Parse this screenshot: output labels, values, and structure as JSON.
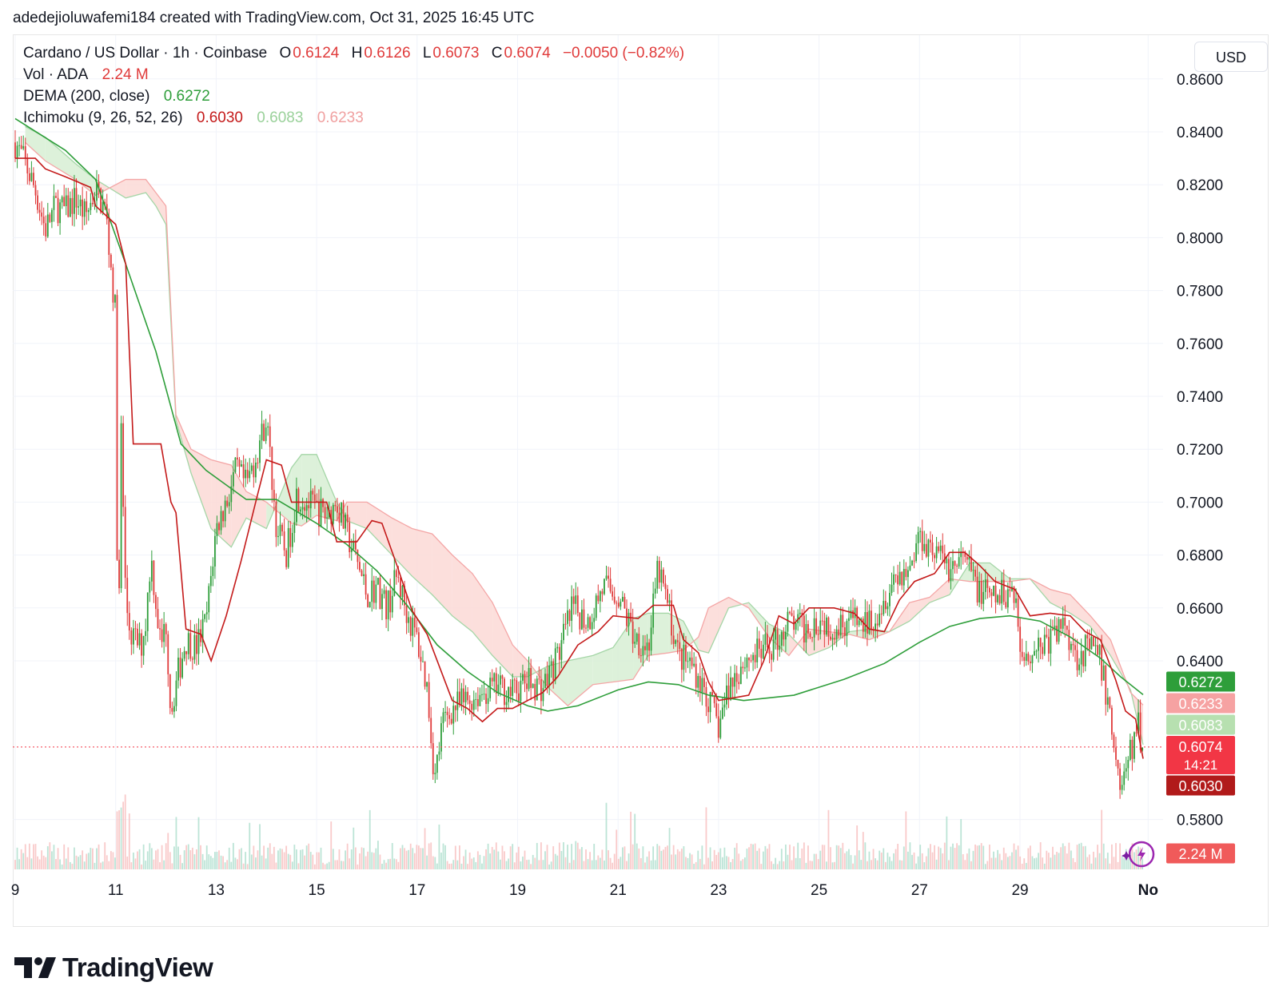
{
  "header": {
    "text": "adedejioluwafemi184 created with TradingView.com, Oct 31, 2025 16:45 UTC"
  },
  "legend": {
    "symbol": "Cardano / US Dollar · 1h · Coinbase",
    "o_label": "O",
    "o_value": "0.6124",
    "h_label": "H",
    "h_value": "0.6126",
    "l_label": "L",
    "l_value": "0.6073",
    "c_label": "C",
    "c_value": "0.6074",
    "change": "−0.0050 (−0.82%)",
    "vol_label": "Vol · ADA",
    "vol_value": "2.24 M",
    "dema_label": "DEMA (200, close)",
    "dema_value": "0.6272",
    "ichimoku_label": "Ichimoku (9, 26, 52, 26)",
    "ichimoku_values": [
      "0.6030",
      "0.6083",
      "0.6233"
    ]
  },
  "currency_button": "USD",
  "logo": {
    "text": "TradingView",
    "icon": "tradingview-logo-icon"
  },
  "lightning_icon": "lightning-bolt-icon",
  "colors": {
    "up": "#26a69a",
    "candle_up": "#2e9e3a",
    "candle_down": "#e03b3b",
    "dema": "#2e9e3a",
    "conversion": "#c41a1a",
    "cloud_green": "#d7efd4",
    "cloud_red": "#fbd9d6",
    "last_price": "#f23645"
  },
  "chart_data": {
    "type": "candlestick",
    "title": "Cardano / US Dollar · 1h · Coinbase",
    "ylim": [
      0.5714,
      0.8657
    ],
    "y_ticks": [
      "0.8600",
      "0.8400",
      "0.8200",
      "0.8000",
      "0.7800",
      "0.7600",
      "0.7400",
      "0.7200",
      "0.7000",
      "0.6800",
      "0.6600",
      "0.6400",
      "0.5800"
    ],
    "x_ticks": [
      "9",
      "11",
      "13",
      "15",
      "17",
      "19",
      "21",
      "23",
      "25",
      "27",
      "29",
      "No"
    ],
    "x_tick_days": [
      9,
      11,
      13,
      15,
      17,
      19,
      21,
      23,
      25,
      27,
      29,
      31.55
    ],
    "x_range_days": [
      9,
      31.45
    ],
    "dema": [
      [
        9.0,
        0.845
      ],
      [
        10.0,
        0.833
      ],
      [
        10.6,
        0.822
      ],
      [
        11.2,
        0.79
      ],
      [
        11.8,
        0.757
      ],
      [
        12.3,
        0.722
      ],
      [
        12.8,
        0.712
      ],
      [
        13.6,
        0.701
      ],
      [
        14.2,
        0.701
      ],
      [
        15.0,
        0.692
      ],
      [
        15.6,
        0.684
      ],
      [
        16.2,
        0.674
      ],
      [
        16.8,
        0.661
      ],
      [
        17.4,
        0.646
      ],
      [
        18.0,
        0.636
      ],
      [
        18.6,
        0.628
      ],
      [
        19.2,
        0.623
      ],
      [
        19.6,
        0.621
      ],
      [
        20.2,
        0.623
      ],
      [
        21.0,
        0.629
      ],
      [
        21.6,
        0.632
      ],
      [
        22.2,
        0.631
      ],
      [
        22.8,
        0.627
      ],
      [
        23.5,
        0.625
      ],
      [
        24.5,
        0.627
      ],
      [
        25.5,
        0.633
      ],
      [
        26.3,
        0.639
      ],
      [
        27.0,
        0.647
      ],
      [
        27.6,
        0.653
      ],
      [
        28.2,
        0.656
      ],
      [
        28.8,
        0.657
      ],
      [
        29.4,
        0.655
      ],
      [
        30.0,
        0.649
      ],
      [
        30.6,
        0.641
      ],
      [
        31.0,
        0.634
      ],
      [
        31.45,
        0.6272
      ]
    ],
    "conversion": [
      [
        9.0,
        0.83
      ],
      [
        9.4,
        0.83
      ],
      [
        9.6,
        0.826
      ],
      [
        10.0,
        0.823
      ],
      [
        10.5,
        0.819
      ],
      [
        10.6,
        0.812
      ],
      [
        11.0,
        0.805
      ],
      [
        11.2,
        0.79
      ],
      [
        11.35,
        0.722
      ],
      [
        11.9,
        0.722
      ],
      [
        12.1,
        0.7
      ],
      [
        12.2,
        0.696
      ],
      [
        12.4,
        0.652
      ],
      [
        12.7,
        0.65
      ],
      [
        12.9,
        0.64
      ],
      [
        13.2,
        0.657
      ],
      [
        13.5,
        0.678
      ],
      [
        13.8,
        0.701
      ],
      [
        14.0,
        0.716
      ],
      [
        14.3,
        0.714
      ],
      [
        14.5,
        0.7
      ],
      [
        15.2,
        0.7
      ],
      [
        15.4,
        0.685
      ],
      [
        15.8,
        0.685
      ],
      [
        16.1,
        0.693
      ],
      [
        16.3,
        0.692
      ],
      [
        16.6,
        0.676
      ],
      [
        16.9,
        0.659
      ],
      [
        17.2,
        0.65
      ],
      [
        17.5,
        0.635
      ],
      [
        17.7,
        0.625
      ],
      [
        18.0,
        0.622
      ],
      [
        18.3,
        0.617
      ],
      [
        18.6,
        0.622
      ],
      [
        18.9,
        0.622
      ],
      [
        19.2,
        0.625
      ],
      [
        19.5,
        0.628
      ],
      [
        19.8,
        0.634
      ],
      [
        20.2,
        0.646
      ],
      [
        20.6,
        0.651
      ],
      [
        20.9,
        0.657
      ],
      [
        21.4,
        0.656
      ],
      [
        21.7,
        0.661
      ],
      [
        22.1,
        0.661
      ],
      [
        22.3,
        0.648
      ],
      [
        22.6,
        0.643
      ],
      [
        22.8,
        0.632
      ],
      [
        23.0,
        0.625
      ],
      [
        23.3,
        0.626
      ],
      [
        23.6,
        0.627
      ],
      [
        23.9,
        0.64
      ],
      [
        24.2,
        0.657
      ],
      [
        24.5,
        0.654
      ],
      [
        24.8,
        0.66
      ],
      [
        25.3,
        0.66
      ],
      [
        25.7,
        0.658
      ],
      [
        26.0,
        0.652
      ],
      [
        26.3,
        0.651
      ],
      [
        26.6,
        0.663
      ],
      [
        26.9,
        0.67
      ],
      [
        27.3,
        0.673
      ],
      [
        27.6,
        0.681
      ],
      [
        27.9,
        0.681
      ],
      [
        28.2,
        0.676
      ],
      [
        28.5,
        0.67
      ],
      [
        28.9,
        0.667
      ],
      [
        29.2,
        0.657
      ],
      [
        29.6,
        0.658
      ],
      [
        30.0,
        0.657
      ],
      [
        30.3,
        0.651
      ],
      [
        30.6,
        0.648
      ],
      [
        30.9,
        0.633
      ],
      [
        31.1,
        0.621
      ],
      [
        31.3,
        0.618
      ],
      [
        31.45,
        0.603
      ]
    ],
    "ichimoku_cloud": [
      [
        9.2,
        0.842,
        0.836
      ],
      [
        9.6,
        0.838,
        0.829
      ],
      [
        10.2,
        0.828,
        0.822
      ],
      [
        10.6,
        0.822,
        0.816
      ],
      [
        11.2,
        0.815,
        0.822
      ],
      [
        11.6,
        0.817,
        0.822
      ],
      [
        11.8,
        0.812,
        0.817
      ],
      [
        12.0,
        0.805,
        0.812
      ],
      [
        12.2,
        0.731,
        0.733
      ],
      [
        12.5,
        0.711,
        0.72
      ],
      [
        12.9,
        0.69,
        0.716
      ],
      [
        13.3,
        0.683,
        0.714
      ],
      [
        13.6,
        0.694,
        0.704
      ],
      [
        14.0,
        0.69,
        0.7
      ],
      [
        14.5,
        0.713,
        0.692
      ],
      [
        14.7,
        0.718,
        0.691
      ],
      [
        15.0,
        0.718,
        0.695
      ],
      [
        15.4,
        0.7,
        0.693
      ],
      [
        15.6,
        0.693,
        0.7
      ],
      [
        16.0,
        0.69,
        0.7
      ],
      [
        16.5,
        0.68,
        0.694
      ],
      [
        16.9,
        0.672,
        0.69
      ],
      [
        17.3,
        0.665,
        0.688
      ],
      [
        17.7,
        0.657,
        0.68
      ],
      [
        18.1,
        0.651,
        0.673
      ],
      [
        18.5,
        0.642,
        0.662
      ],
      [
        18.9,
        0.634,
        0.646
      ],
      [
        19.2,
        0.634,
        0.64
      ],
      [
        19.6,
        0.638,
        0.63
      ],
      [
        20.0,
        0.64,
        0.623
      ],
      [
        20.5,
        0.642,
        0.631
      ],
      [
        20.9,
        0.645,
        0.632
      ],
      [
        21.3,
        0.656,
        0.633
      ],
      [
        21.6,
        0.658,
        0.642
      ],
      [
        22.0,
        0.658,
        0.643
      ],
      [
        22.3,
        0.655,
        0.644
      ],
      [
        22.6,
        0.644,
        0.649
      ],
      [
        22.8,
        0.643,
        0.66
      ],
      [
        23.2,
        0.66,
        0.664
      ],
      [
        23.6,
        0.662,
        0.66
      ],
      [
        24.0,
        0.654,
        0.649
      ],
      [
        24.4,
        0.65,
        0.642
      ],
      [
        24.8,
        0.642,
        0.652
      ],
      [
        25.2,
        0.645,
        0.651
      ],
      [
        25.6,
        0.651,
        0.65
      ],
      [
        26.0,
        0.652,
        0.648
      ],
      [
        26.4,
        0.651,
        0.651
      ],
      [
        26.8,
        0.655,
        0.662
      ],
      [
        27.2,
        0.662,
        0.664
      ],
      [
        27.6,
        0.665,
        0.671
      ],
      [
        28.0,
        0.677,
        0.67
      ],
      [
        28.4,
        0.677,
        0.67
      ],
      [
        28.8,
        0.671,
        0.67
      ],
      [
        29.2,
        0.671,
        0.671
      ],
      [
        29.6,
        0.662,
        0.667
      ],
      [
        30.0,
        0.658,
        0.665
      ],
      [
        30.4,
        0.653,
        0.657
      ],
      [
        30.8,
        0.642,
        0.648
      ],
      [
        31.2,
        0.629,
        0.628
      ],
      [
        31.45,
        0.6083,
        0.6233
      ]
    ],
    "price_path": [
      [
        9.0,
        0.836
      ],
      [
        9.2,
        0.828
      ],
      [
        9.4,
        0.818
      ],
      [
        9.6,
        0.803
      ],
      [
        9.8,
        0.812
      ],
      [
        10.0,
        0.81
      ],
      [
        10.2,
        0.815
      ],
      [
        10.4,
        0.808
      ],
      [
        10.6,
        0.818
      ],
      [
        10.8,
        0.81
      ],
      [
        10.9,
        0.79
      ],
      [
        11.0,
        0.77
      ],
      [
        11.05,
        0.62
      ],
      [
        11.1,
        0.735
      ],
      [
        11.2,
        0.662
      ],
      [
        11.3,
        0.65
      ],
      [
        11.5,
        0.645
      ],
      [
        11.6,
        0.655
      ],
      [
        11.7,
        0.68
      ],
      [
        11.9,
        0.645
      ],
      [
        12.0,
        0.655
      ],
      [
        12.1,
        0.62
      ],
      [
        12.2,
        0.632
      ],
      [
        12.4,
        0.648
      ],
      [
        12.6,
        0.645
      ],
      [
        12.8,
        0.655
      ],
      [
        13.0,
        0.69
      ],
      [
        13.2,
        0.7
      ],
      [
        13.4,
        0.712
      ],
      [
        13.6,
        0.706
      ],
      [
        13.8,
        0.718
      ],
      [
        14.0,
        0.732
      ],
      [
        14.2,
        0.69
      ],
      [
        14.4,
        0.68
      ],
      [
        14.6,
        0.703
      ],
      [
        14.8,
        0.7
      ],
      [
        15.0,
        0.697
      ],
      [
        15.2,
        0.695
      ],
      [
        15.4,
        0.7
      ],
      [
        15.6,
        0.688
      ],
      [
        15.8,
        0.678
      ],
      [
        16.0,
        0.665
      ],
      [
        16.2,
        0.668
      ],
      [
        16.4,
        0.66
      ],
      [
        16.6,
        0.672
      ],
      [
        16.8,
        0.658
      ],
      [
        17.0,
        0.648
      ],
      [
        17.2,
        0.63
      ],
      [
        17.35,
        0.595
      ],
      [
        17.5,
        0.616
      ],
      [
        17.7,
        0.622
      ],
      [
        18.0,
        0.625
      ],
      [
        18.3,
        0.628
      ],
      [
        18.6,
        0.63
      ],
      [
        18.9,
        0.628
      ],
      [
        19.2,
        0.632
      ],
      [
        19.5,
        0.63
      ],
      [
        19.8,
        0.642
      ],
      [
        20.1,
        0.66
      ],
      [
        20.4,
        0.655
      ],
      [
        20.7,
        0.668
      ],
      [
        21.0,
        0.665
      ],
      [
        21.3,
        0.65
      ],
      [
        21.6,
        0.645
      ],
      [
        21.8,
        0.675
      ],
      [
        22.0,
        0.66
      ],
      [
        22.2,
        0.642
      ],
      [
        22.5,
        0.638
      ],
      [
        22.8,
        0.625
      ],
      [
        23.0,
        0.615
      ],
      [
        23.2,
        0.63
      ],
      [
        23.5,
        0.64
      ],
      [
        23.8,
        0.643
      ],
      [
        24.1,
        0.646
      ],
      [
        24.4,
        0.655
      ],
      [
        24.7,
        0.652
      ],
      [
        25.0,
        0.656
      ],
      [
        25.3,
        0.653
      ],
      [
        25.6,
        0.656
      ],
      [
        25.9,
        0.653
      ],
      [
        26.2,
        0.66
      ],
      [
        26.5,
        0.672
      ],
      [
        26.8,
        0.675
      ],
      [
        27.0,
        0.688
      ],
      [
        27.3,
        0.682
      ],
      [
        27.6,
        0.675
      ],
      [
        27.9,
        0.678
      ],
      [
        28.2,
        0.666
      ],
      [
        28.5,
        0.663
      ],
      [
        28.9,
        0.668
      ],
      [
        29.0,
        0.642
      ],
      [
        29.3,
        0.645
      ],
      [
        29.6,
        0.648
      ],
      [
        29.9,
        0.655
      ],
      [
        30.1,
        0.642
      ],
      [
        30.4,
        0.645
      ],
      [
        30.6,
        0.64
      ],
      [
        30.8,
        0.618
      ],
      [
        31.0,
        0.592
      ],
      [
        31.2,
        0.605
      ],
      [
        31.35,
        0.616
      ],
      [
        31.45,
        0.6074
      ]
    ],
    "volume_last": "2.24 M",
    "price_labels": [
      {
        "name": "dema",
        "value": "0.6272"
      },
      {
        "name": "lagging",
        "value": "0.6233"
      },
      {
        "name": "base",
        "value": "0.6083"
      },
      {
        "name": "last",
        "value": "0.6074",
        "countdown": "14:21"
      },
      {
        "name": "conversion",
        "value": "0.6030"
      },
      {
        "name": "volume",
        "value": "2.24 M"
      }
    ]
  }
}
